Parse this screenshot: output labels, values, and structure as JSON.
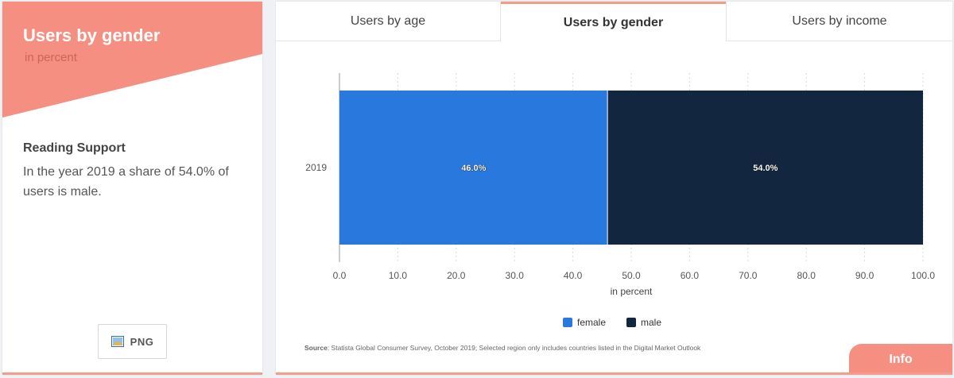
{
  "sidebar": {
    "title": "Users by gender",
    "subtitle": "in percent",
    "reading_support_heading": "Reading Support",
    "reading_support_text": "In the year 2019 a share of 54.0% of users is male.",
    "png_label": "PNG"
  },
  "tabs": [
    {
      "label": "Users by age"
    },
    {
      "label": "Users by gender",
      "active": true
    },
    {
      "label": "Users by income"
    }
  ],
  "source_label": "Source",
  "source_text": ": Statista Global Consumer Survey, October 2019; Selected region only includes countries listed in the Digital Market Outlook",
  "info_label": "Info",
  "colors": {
    "accent": "#f58f82",
    "female": "#2878de",
    "male": "#12263f"
  },
  "chart_data": {
    "type": "bar",
    "orientation": "horizontal",
    "stacked": true,
    "categories": [
      "2019"
    ],
    "series": [
      {
        "name": "female",
        "values": [
          46.0
        ],
        "color": "#2878de"
      },
      {
        "name": "male",
        "values": [
          54.0
        ],
        "color": "#12263f"
      }
    ],
    "data_labels": [
      "46.0%",
      "54.0%"
    ],
    "xlim": [
      0,
      100
    ],
    "xticks": [
      "0.0",
      "10.0",
      "20.0",
      "30.0",
      "40.0",
      "50.0",
      "60.0",
      "70.0",
      "80.0",
      "90.0",
      "100.0"
    ],
    "xlabel": "in percent",
    "ylabel": "",
    "grid": true,
    "legend_position": "bottom"
  }
}
